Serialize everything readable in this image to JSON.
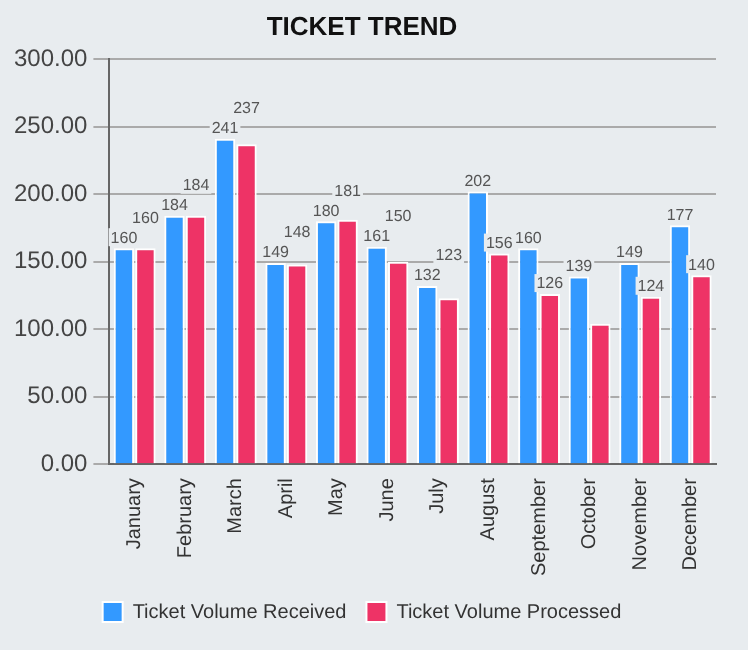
{
  "chart_data": {
    "type": "bar",
    "title": "TICKET TREND",
    "categories": [
      "January",
      "February",
      "March",
      "April",
      "May",
      "June",
      "July",
      "August",
      "September",
      "October",
      "November",
      "December"
    ],
    "series": [
      {
        "name": "Ticket Volume Received",
        "color": "#3399ff",
        "values": [
          160,
          184,
          241,
          149,
          180,
          161,
          132,
          202,
          160,
          139,
          149,
          177
        ],
        "value_labels": [
          "160",
          "184",
          "241",
          "149",
          "180",
          "161",
          "132",
          "202",
          "160",
          "139",
          "149",
          "177"
        ]
      },
      {
        "name": "Ticket Volume Processed",
        "color": "#ee3366",
        "values": [
          160,
          184,
          237,
          148,
          181,
          150,
          123,
          156,
          126,
          104,
          124,
          140
        ],
        "value_labels": [
          "160",
          "184",
          "237",
          "148",
          "181",
          "150",
          "123",
          "156",
          "126",
          null,
          "124",
          "140"
        ]
      }
    ],
    "ylim": [
      0,
      300
    ],
    "yticks": [
      {
        "value": 0,
        "label": "0.00"
      },
      {
        "value": 50,
        "label": "50.00"
      },
      {
        "value": 100,
        "label": "100.00"
      },
      {
        "value": 150,
        "label": "150.00"
      },
      {
        "value": 200,
        "label": "200.00"
      },
      {
        "value": 250,
        "label": "250.00"
      },
      {
        "value": 300,
        "label": "300.00"
      }
    ],
    "grid": "y",
    "legend": "bottom"
  }
}
